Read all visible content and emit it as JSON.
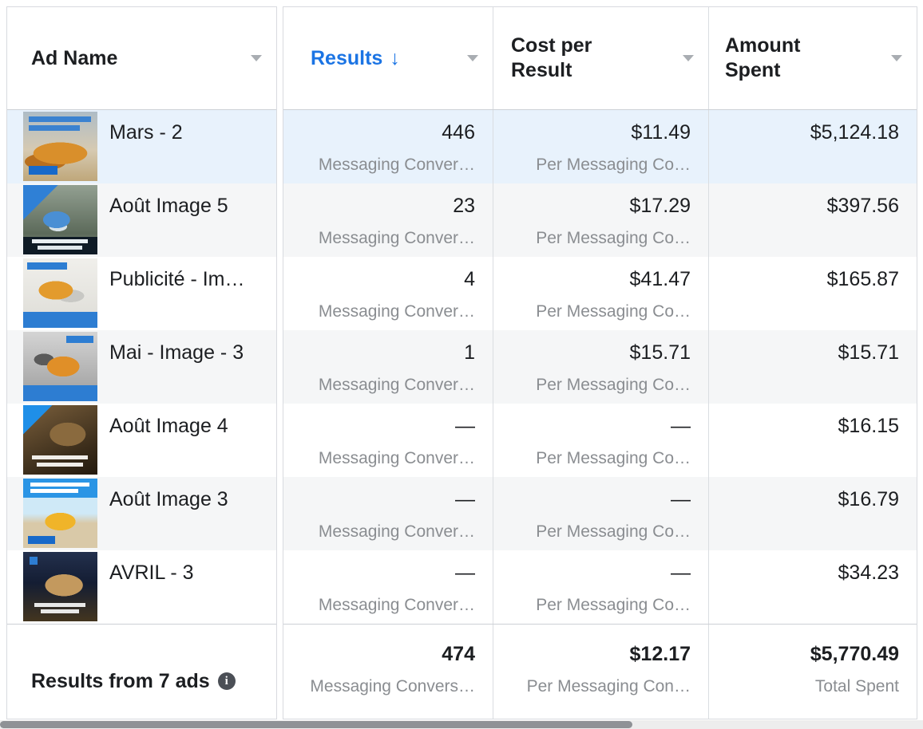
{
  "table": {
    "columns": {
      "ad_name": {
        "label": "Ad Name"
      },
      "results": {
        "label": "Results",
        "sort_arrow": "↓"
      },
      "cost_per_result": {
        "label": "Cost per Result"
      },
      "amount_spent": {
        "label": "Amount Spent"
      }
    },
    "rows": [
      {
        "name": "Mars - 2",
        "thumb": "yellow-grader-dusty-sky-ad",
        "results": "446",
        "results_sub": "Messaging Conver…",
        "cost_per_result": "$11.49",
        "cost_sub": "Per Messaging Co…",
        "amount_spent": "$5,124.18"
      },
      {
        "name": "Août Image 5",
        "thumb": "blue-truck-snowy-forest-ad",
        "results": "23",
        "results_sub": "Messaging Conver…",
        "cost_per_result": "$17.29",
        "cost_sub": "Per Messaging Co…",
        "amount_spent": "$397.56"
      },
      {
        "name": "Publicité - Im…",
        "thumb": "yellow-loader-white-bg-ad",
        "results": "4",
        "results_sub": "Messaging Conver…",
        "cost_per_result": "$41.47",
        "cost_sub": "Per Messaging Co…",
        "amount_spent": "$165.87"
      },
      {
        "name": "Mai - Image - 3",
        "thumb": "orange-loader-grayscale-ad",
        "results": "1",
        "results_sub": "Messaging Conver…",
        "cost_per_result": "$15.71",
        "cost_sub": "Per Messaging Co…",
        "amount_spent": "$15.71"
      },
      {
        "name": "Août Image 4",
        "thumb": "excavator-bucket-sepia-ad",
        "results": "—",
        "results_sub": "Messaging Conver…",
        "cost_per_result": "—",
        "cost_sub": "Per Messaging Co…",
        "amount_spent": "$16.15"
      },
      {
        "name": "Août Image 3",
        "thumb": "yellow-loader-blue-sky-ad",
        "results": "—",
        "results_sub": "Messaging Conver…",
        "cost_per_result": "—",
        "cost_sub": "Per Messaging Co…",
        "amount_spent": "$16.79"
      },
      {
        "name": "AVRIL - 3",
        "thumb": "dump-truck-night-ad",
        "results": "—",
        "results_sub": "Messaging Conver…",
        "cost_per_result": "—",
        "cost_sub": "Per Messaging Co…",
        "amount_spent": "$34.23"
      }
    ],
    "footer": {
      "label": "Results from 7 ads",
      "info_icon": "i",
      "results": "474",
      "results_sub": "Messaging Convers…",
      "cost_per_result": "$12.17",
      "cost_sub": "Per Messaging Con…",
      "amount_spent": "$5,770.49",
      "amount_sub": "Total Spent"
    }
  },
  "colors": {
    "accent_blue": "#1b74e4",
    "selected_row": "#e8f2fc",
    "stripe_gray": "#f5f6f7",
    "secondary_text": "#8a8d91"
  }
}
